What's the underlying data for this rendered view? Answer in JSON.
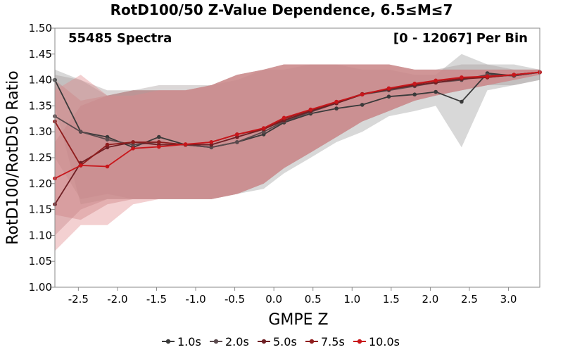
{
  "chart_data": {
    "type": "line",
    "title": "RotD100/50 Z-Value Dependence, 6.5≤M≤7",
    "annotations": {
      "left": "55485 Spectra",
      "right": "[0 - 12067] Per Bin"
    },
    "xlabel": "GMPE Z",
    "ylabel": "RotD100/RotD50 Ratio",
    "xlim": [
      -2.8,
      3.4
    ],
    "ylim": [
      1.0,
      1.5
    ],
    "xticks": [
      "-2.5",
      "-2.0",
      "-1.5",
      "-1.0",
      "-0.5",
      "0.0",
      "0.5",
      "1.0",
      "1.5",
      "2.0",
      "2.5",
      "3.0"
    ],
    "xtick_values": [
      -2.5,
      -2.0,
      -1.5,
      -1.0,
      -0.5,
      0.0,
      0.5,
      1.0,
      1.5,
      2.0,
      2.5,
      3.0
    ],
    "yticks": [
      "1.00",
      "1.05",
      "1.10",
      "1.15",
      "1.20",
      "1.25",
      "1.30",
      "1.35",
      "1.40",
      "1.45",
      "1.50"
    ],
    "ytick_values": [
      1.0,
      1.05,
      1.1,
      1.15,
      1.2,
      1.25,
      1.3,
      1.35,
      1.4,
      1.45,
      1.5
    ],
    "grid": false,
    "legend_position": "bottom",
    "x": [
      -2.8,
      -2.47,
      -2.13,
      -1.8,
      -1.47,
      -1.13,
      -0.8,
      -0.47,
      -0.13,
      0.13,
      0.47,
      0.8,
      1.13,
      1.47,
      1.8,
      2.07,
      2.4,
      2.73,
      3.07,
      3.4
    ],
    "series": [
      {
        "name": "1.0s",
        "color": "#3a3a3a",
        "band_color": "#9e9e9e",
        "values": [
          1.4,
          1.3,
          1.29,
          1.27,
          1.29,
          1.275,
          1.27,
          1.28,
          1.295,
          1.318,
          1.335,
          1.345,
          1.352,
          1.368,
          1.372,
          1.377,
          1.358,
          1.413,
          1.408,
          1.415
        ],
        "lower": [
          1.35,
          1.16,
          1.17,
          1.17,
          1.17,
          1.17,
          1.17,
          1.18,
          1.19,
          1.22,
          1.25,
          1.28,
          1.3,
          1.33,
          1.34,
          1.35,
          1.27,
          1.38,
          1.39,
          1.4
        ],
        "upper": [
          1.42,
          1.4,
          1.37,
          1.38,
          1.38,
          1.38,
          1.39,
          1.4,
          1.42,
          1.42,
          1.43,
          1.43,
          1.42,
          1.42,
          1.41,
          1.41,
          1.45,
          1.43,
          1.43,
          1.42
        ]
      },
      {
        "name": "2.0s",
        "color": "#5a4a4d",
        "band_color": "#a69a9c",
        "values": [
          1.33,
          1.3,
          1.285,
          1.275,
          1.28,
          1.275,
          1.27,
          1.28,
          1.3,
          1.32,
          1.338,
          1.355,
          1.372,
          1.38,
          1.388,
          1.395,
          1.4,
          1.41,
          1.408,
          1.415
        ],
        "lower": [
          1.25,
          1.17,
          1.18,
          1.17,
          1.17,
          1.17,
          1.17,
          1.18,
          1.2,
          1.23,
          1.26,
          1.29,
          1.32,
          1.34,
          1.36,
          1.37,
          1.38,
          1.39,
          1.39,
          1.4
        ],
        "upper": [
          1.41,
          1.4,
          1.38,
          1.38,
          1.39,
          1.39,
          1.39,
          1.41,
          1.42,
          1.43,
          1.43,
          1.43,
          1.43,
          1.43,
          1.42,
          1.42,
          1.43,
          1.43,
          1.42,
          1.42
        ]
      },
      {
        "name": "5.0s",
        "color": "#6e1f24",
        "band_color": "#b08587",
        "values": [
          1.16,
          1.24,
          1.27,
          1.28,
          1.275,
          1.275,
          1.275,
          1.29,
          1.305,
          1.322,
          1.34,
          1.355,
          1.372,
          1.382,
          1.39,
          1.395,
          1.402,
          1.405,
          1.41,
          1.415
        ],
        "lower": [
          1.1,
          1.15,
          1.17,
          1.17,
          1.17,
          1.17,
          1.17,
          1.18,
          1.2,
          1.23,
          1.26,
          1.29,
          1.32,
          1.34,
          1.36,
          1.37,
          1.38,
          1.39,
          1.4,
          1.41
        ],
        "upper": [
          1.28,
          1.35,
          1.37,
          1.38,
          1.38,
          1.38,
          1.39,
          1.41,
          1.42,
          1.43,
          1.43,
          1.43,
          1.43,
          1.43,
          1.42,
          1.42,
          1.42,
          1.42,
          1.42,
          1.42
        ]
      },
      {
        "name": "7.5s",
        "color": "#8f1d1d",
        "band_color": "#c07a7a",
        "values": [
          1.32,
          1.235,
          1.275,
          1.28,
          1.28,
          1.275,
          1.28,
          1.295,
          1.305,
          1.325,
          1.342,
          1.357,
          1.373,
          1.383,
          1.392,
          1.398,
          1.404,
          1.405,
          1.41,
          1.415
        ],
        "lower": [
          1.14,
          1.13,
          1.16,
          1.17,
          1.17,
          1.17,
          1.17,
          1.18,
          1.2,
          1.23,
          1.26,
          1.29,
          1.32,
          1.34,
          1.36,
          1.37,
          1.38,
          1.39,
          1.4,
          1.41
        ],
        "upper": [
          1.4,
          1.36,
          1.37,
          1.38,
          1.38,
          1.38,
          1.39,
          1.41,
          1.42,
          1.43,
          1.43,
          1.43,
          1.43,
          1.43,
          1.42,
          1.42,
          1.42,
          1.42,
          1.42,
          1.42
        ]
      },
      {
        "name": "10.0s",
        "color": "#c8161b",
        "band_color": "#e08a8c",
        "values": [
          1.21,
          1.235,
          1.233,
          1.268,
          1.271,
          1.276,
          1.28,
          1.295,
          1.307,
          1.327,
          1.343,
          1.358,
          1.372,
          1.384,
          1.393,
          1.399,
          1.405,
          1.407,
          1.41,
          1.415
        ],
        "lower": [
          1.07,
          1.12,
          1.12,
          1.16,
          1.17,
          1.17,
          1.17,
          1.18,
          1.2,
          1.23,
          1.26,
          1.29,
          1.32,
          1.34,
          1.36,
          1.37,
          1.38,
          1.39,
          1.4,
          1.41
        ],
        "upper": [
          1.38,
          1.41,
          1.37,
          1.37,
          1.38,
          1.38,
          1.39,
          1.41,
          1.42,
          1.43,
          1.43,
          1.43,
          1.43,
          1.43,
          1.42,
          1.42,
          1.42,
          1.42,
          1.42,
          1.42
        ]
      }
    ]
  }
}
